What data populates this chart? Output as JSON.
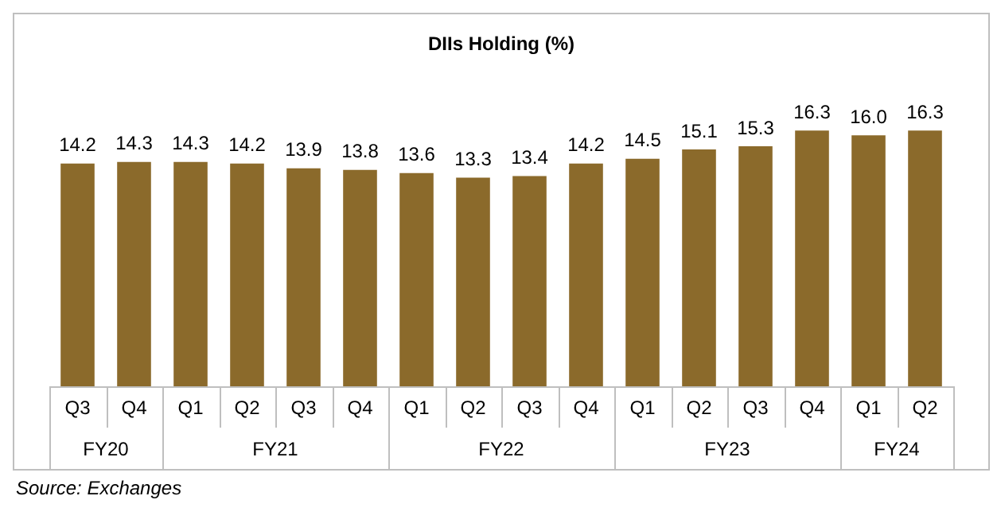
{
  "chart_data": {
    "type": "bar",
    "title": "DIIs Holding (%)",
    "categories": [
      "Q3",
      "Q4",
      "Q1",
      "Q2",
      "Q3",
      "Q4",
      "Q1",
      "Q2",
      "Q3",
      "Q4",
      "Q1",
      "Q2",
      "Q3",
      "Q4",
      "Q1",
      "Q2"
    ],
    "values": [
      14.2,
      14.3,
      14.3,
      14.2,
      13.9,
      13.8,
      13.6,
      13.3,
      13.4,
      14.2,
      14.5,
      15.1,
      15.3,
      16.3,
      16.0,
      16.3
    ],
    "value_labels": [
      "14.2",
      "14.3",
      "14.3",
      "14.2",
      "13.9",
      "13.8",
      "13.6",
      "13.3",
      "13.4",
      "14.2",
      "14.5",
      "15.1",
      "15.3",
      "16.3",
      "16.0",
      "16.3"
    ],
    "color": "#8b6a2b",
    "legend": false,
    "annotations": [
      "FY20",
      "FY21",
      "FY22",
      "FY23",
      "FY24",
      "Source: Exchanges"
    ]
  }
}
